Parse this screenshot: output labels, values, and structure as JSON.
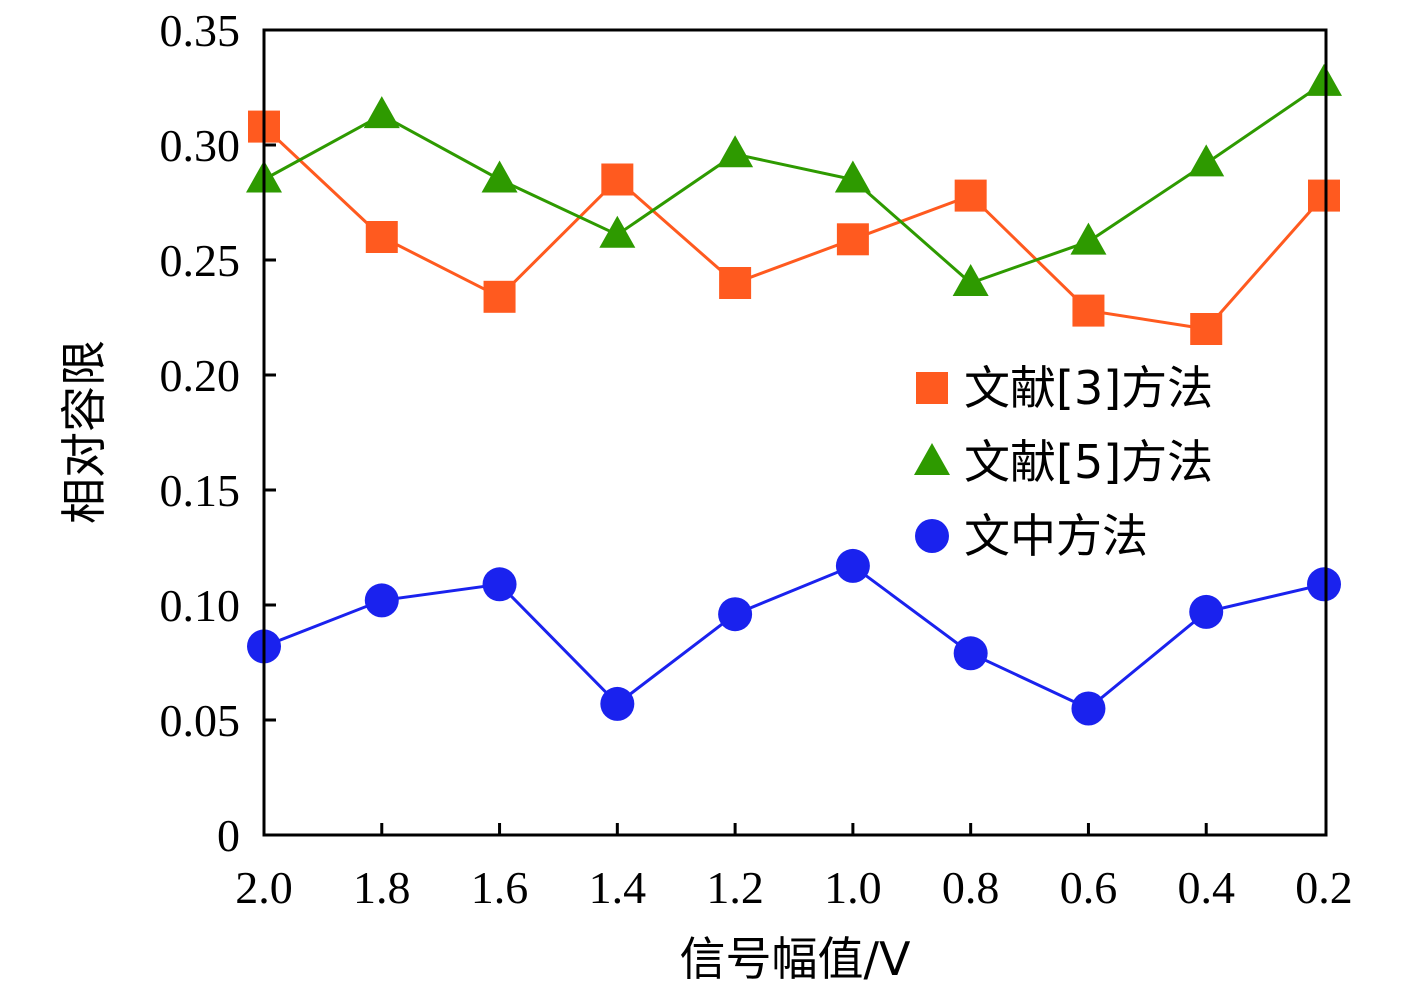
{
  "chart_data": {
    "type": "line",
    "xlabel": "信号幅值/V",
    "ylabel": "相对容限",
    "x": [
      2.0,
      1.8,
      1.6,
      1.4,
      1.2,
      1.0,
      0.8,
      0.6,
      0.4,
      0.2
    ],
    "x_tick_labels": [
      "2.0",
      "1.8",
      "1.6",
      "1.4",
      "1.2",
      "1.0",
      "0.8",
      "0.6",
      "0.4",
      "0.2"
    ],
    "y_ticks": [
      0,
      0.05,
      0.1,
      0.15,
      0.2,
      0.25,
      0.3,
      0.35
    ],
    "y_tick_labels": [
      "0",
      "0.05",
      "0.10",
      "0.15",
      "0.20",
      "0.25",
      "0.30",
      "0.35"
    ],
    "ylim": [
      0,
      0.35
    ],
    "x_reversed": true,
    "grid": false,
    "legend_position": "right",
    "series": [
      {
        "name": "文献[3]方法",
        "marker": "square",
        "color": "#ff5a1f",
        "values": [
          0.308,
          0.26,
          0.234,
          0.285,
          0.24,
          0.259,
          0.278,
          0.228,
          0.22,
          0.278
        ]
      },
      {
        "name": "文献[5]方法",
        "marker": "triangle",
        "color": "#2e9a00",
        "values": [
          0.285,
          0.313,
          0.285,
          0.261,
          0.296,
          0.285,
          0.24,
          0.258,
          0.292,
          0.327
        ]
      },
      {
        "name": "文中方法",
        "marker": "circle",
        "color": "#1a22ee",
        "values": [
          0.082,
          0.102,
          0.109,
          0.057,
          0.096,
          0.117,
          0.079,
          0.055,
          0.097,
          0.109
        ]
      }
    ]
  }
}
